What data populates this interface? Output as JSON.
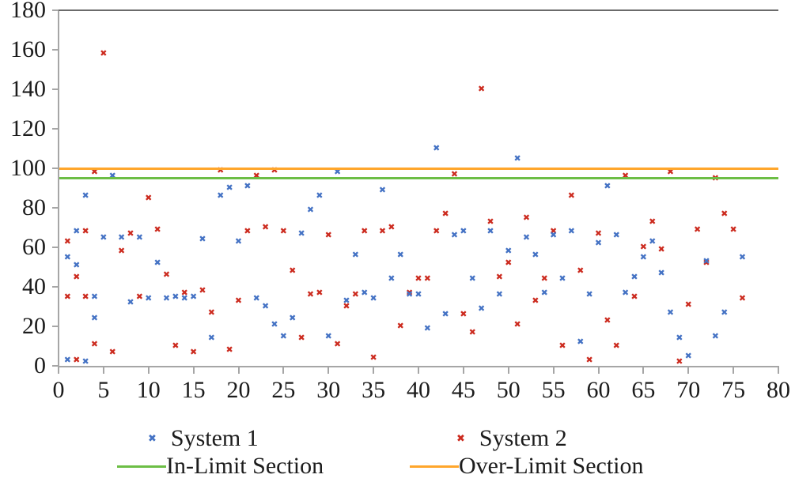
{
  "chart_data": {
    "type": "scatter",
    "title": "",
    "xlabel": "",
    "ylabel": "",
    "grid": false,
    "legend_position": "bottom",
    "x_axis": {
      "min": 0,
      "max": 80,
      "tick_step": 5,
      "tick_labels": [
        "0",
        "5",
        "10",
        "15",
        "20",
        "25",
        "30",
        "35",
        "40",
        "45",
        "50",
        "55",
        "60",
        "65",
        "70",
        "75",
        "80"
      ]
    },
    "y_axis": {
      "min": 0,
      "max": 180,
      "tick_step": 20,
      "tick_labels": [
        "0",
        "20",
        "40",
        "60",
        "80",
        "100",
        "120",
        "140",
        "160",
        "180"
      ]
    },
    "series": [
      {
        "name": "System 1",
        "color": "#4472C4",
        "marker": "x",
        "points": [
          [
            1,
            55
          ],
          [
            1,
            3
          ],
          [
            2,
            68
          ],
          [
            2,
            51
          ],
          [
            3,
            86
          ],
          [
            3,
            2
          ],
          [
            4,
            35
          ],
          [
            4,
            24
          ],
          [
            5,
            65
          ],
          [
            6,
            96
          ],
          [
            7,
            65
          ],
          [
            8,
            32
          ],
          [
            9,
            65
          ],
          [
            10,
            34
          ],
          [
            11,
            52
          ],
          [
            12,
            34
          ],
          [
            13,
            35
          ],
          [
            14,
            34
          ],
          [
            15,
            35
          ],
          [
            16,
            64
          ],
          [
            17,
            14
          ],
          [
            18,
            86
          ],
          [
            19,
            90
          ],
          [
            20,
            63
          ],
          [
            21,
            91
          ],
          [
            22,
            34
          ],
          [
            23,
            30
          ],
          [
            24,
            21
          ],
          [
            25,
            15
          ],
          [
            26,
            24
          ],
          [
            27,
            67
          ],
          [
            28,
            79
          ],
          [
            29,
            86
          ],
          [
            30,
            15
          ],
          [
            31,
            98
          ],
          [
            32,
            33
          ],
          [
            33,
            56
          ],
          [
            34,
            37
          ],
          [
            35,
            34
          ],
          [
            36,
            89
          ],
          [
            37,
            44
          ],
          [
            38,
            56
          ],
          [
            39,
            36
          ],
          [
            40,
            36
          ],
          [
            41,
            19
          ],
          [
            42,
            110
          ],
          [
            43,
            26
          ],
          [
            44,
            66
          ],
          [
            45,
            68
          ],
          [
            46,
            44
          ],
          [
            47,
            29
          ],
          [
            48,
            68
          ],
          [
            49,
            36
          ],
          [
            50,
            58
          ],
          [
            51,
            105
          ],
          [
            52,
            65
          ],
          [
            53,
            56
          ],
          [
            54,
            37
          ],
          [
            55,
            66
          ],
          [
            56,
            44
          ],
          [
            57,
            68
          ],
          [
            58,
            12
          ],
          [
            59,
            36
          ],
          [
            60,
            62
          ],
          [
            61,
            91
          ],
          [
            62,
            66
          ],
          [
            63,
            37
          ],
          [
            64,
            45
          ],
          [
            65,
            55
          ],
          [
            66,
            63
          ],
          [
            67,
            47
          ],
          [
            68,
            27
          ],
          [
            69,
            14
          ],
          [
            70,
            5
          ],
          [
            72,
            53
          ],
          [
            73,
            15
          ],
          [
            74,
            27
          ],
          [
            76,
            55
          ]
        ]
      },
      {
        "name": "System 2",
        "color": "#CC2B1F",
        "marker": "x",
        "points": [
          [
            1,
            63
          ],
          [
            1,
            35
          ],
          [
            2,
            45
          ],
          [
            2,
            3
          ],
          [
            3,
            68
          ],
          [
            3,
            35
          ],
          [
            4,
            98
          ],
          [
            4,
            11
          ],
          [
            5,
            158
          ],
          [
            6,
            7
          ],
          [
            7,
            58
          ],
          [
            8,
            67
          ],
          [
            9,
            35
          ],
          [
            10,
            85
          ],
          [
            11,
            69
          ],
          [
            12,
            46
          ],
          [
            13,
            10
          ],
          [
            14,
            37
          ],
          [
            15,
            7
          ],
          [
            16,
            38
          ],
          [
            17,
            27
          ],
          [
            18,
            99
          ],
          [
            19,
            8
          ],
          [
            20,
            33
          ],
          [
            21,
            68
          ],
          [
            22,
            96
          ],
          [
            23,
            70
          ],
          [
            24,
            99
          ],
          [
            25,
            68
          ],
          [
            26,
            48
          ],
          [
            27,
            14
          ],
          [
            28,
            36
          ],
          [
            29,
            37
          ],
          [
            30,
            66
          ],
          [
            31,
            11
          ],
          [
            32,
            30
          ],
          [
            33,
            36
          ],
          [
            34,
            68
          ],
          [
            35,
            4
          ],
          [
            36,
            68
          ],
          [
            37,
            70
          ],
          [
            38,
            20
          ],
          [
            39,
            37
          ],
          [
            40,
            44
          ],
          [
            41,
            44
          ],
          [
            42,
            68
          ],
          [
            43,
            77
          ],
          [
            44,
            97
          ],
          [
            45,
            26
          ],
          [
            46,
            17
          ],
          [
            47,
            140
          ],
          [
            48,
            73
          ],
          [
            49,
            45
          ],
          [
            50,
            52
          ],
          [
            51,
            21
          ],
          [
            52,
            75
          ],
          [
            53,
            33
          ],
          [
            54,
            44
          ],
          [
            55,
            68
          ],
          [
            56,
            10
          ],
          [
            57,
            86
          ],
          [
            58,
            48
          ],
          [
            59,
            3
          ],
          [
            60,
            67
          ],
          [
            61,
            23
          ],
          [
            62,
            10
          ],
          [
            63,
            96
          ],
          [
            64,
            35
          ],
          [
            65,
            60
          ],
          [
            66,
            73
          ],
          [
            67,
            59
          ],
          [
            68,
            98
          ],
          [
            69,
            2
          ],
          [
            70,
            31
          ],
          [
            71,
            69
          ],
          [
            72,
            52
          ],
          [
            73,
            95
          ],
          [
            74,
            77
          ],
          [
            75,
            69
          ],
          [
            76,
            34
          ]
        ]
      }
    ],
    "reference_lines": [
      {
        "name": "In-Limit Section",
        "value": 95,
        "color": "#6CBE45"
      },
      {
        "name": "Over-Limit Section",
        "value": 100,
        "color": "#FFA62B"
      }
    ]
  }
}
